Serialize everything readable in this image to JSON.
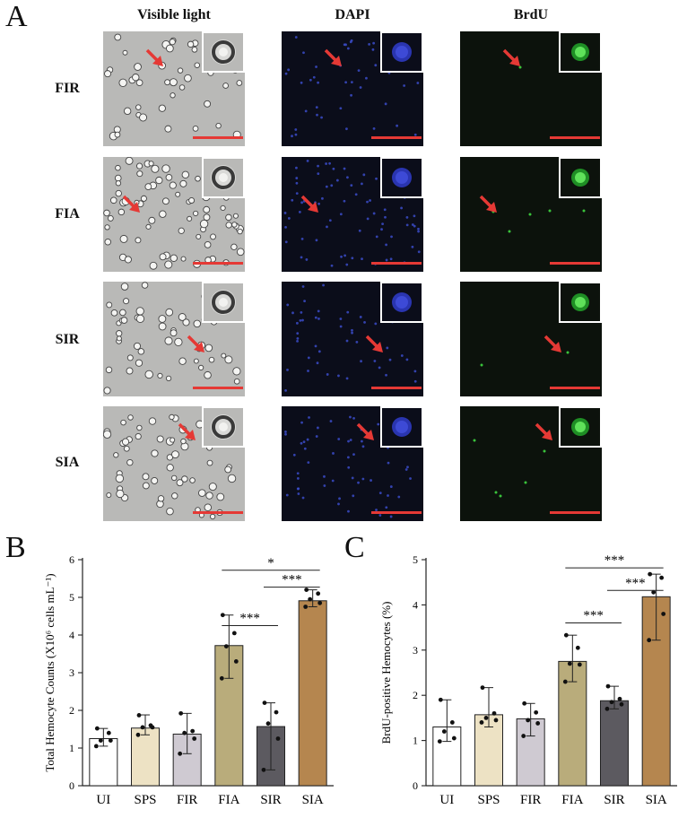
{
  "figure": {
    "panel_a_letter": "A",
    "panel_b_letter": "B",
    "panel_c_letter": "C",
    "column_headers": [
      "Visible light",
      "DAPI",
      "BrdU"
    ],
    "row_labels": [
      "FIR",
      "FIA",
      "SIR",
      "SIA"
    ],
    "colors": {
      "arrow": "#e53935",
      "scalebar": "#e53935",
      "dapi_bg": "#0b0d1a",
      "dapi_cell": "#3b4cc9",
      "brdu_bg": "#0c120c",
      "brdu_cell": "#39c33b",
      "vis_bg": "#b9b9b7"
    }
  },
  "chart_data": [
    {
      "type": "bar",
      "ylabel": "Total Hemocyte Counts (X10⁶ cells mL⁻¹)",
      "categories": [
        "UI",
        "SPS",
        "FIR",
        "FIA",
        "SIR",
        "SIA"
      ],
      "values": [
        1.25,
        1.53,
        1.37,
        3.72,
        1.57,
        4.91
      ],
      "error_low": [
        1.05,
        1.35,
        0.85,
        2.85,
        0.42,
        4.75
      ],
      "error_high": [
        1.52,
        1.88,
        1.92,
        4.53,
        2.2,
        5.2
      ],
      "points": [
        [
          1.52,
          1.4,
          1.2,
          1.2,
          1.05
        ],
        [
          1.87,
          1.6,
          1.55,
          1.55,
          1.35
        ],
        [
          1.92,
          1.45,
          1.4,
          1.25,
          0.85
        ],
        [
          4.53,
          4.05,
          3.7,
          3.3,
          2.85
        ],
        [
          2.2,
          1.95,
          1.65,
          1.25,
          0.42
        ],
        [
          5.2,
          5.1,
          4.95,
          4.85,
          4.75
        ]
      ],
      "bar_colors": [
        "#ffffff",
        "#ede2c4",
        "#cfcad2",
        "#b9ac7b",
        "#5c5a60",
        "#b5864f"
      ],
      "ylim": [
        0,
        6
      ],
      "yticks": [
        "0",
        "1",
        "2",
        "3",
        "4",
        "5",
        "6"
      ],
      "significance": [
        {
          "from": 3,
          "to": 4,
          "label": "***",
          "y": 4.25
        },
        {
          "from": 4,
          "to": 5,
          "label": "***",
          "y": 5.27
        },
        {
          "from": 3,
          "to": 5,
          "label": "*",
          "y": 5.72
        }
      ]
    },
    {
      "type": "bar",
      "ylabel": "BrdU-positive Hemocytes (%)",
      "categories": [
        "UI",
        "SPS",
        "FIR",
        "FIA",
        "SIR",
        "SIA"
      ],
      "values": [
        1.3,
        1.57,
        1.48,
        2.75,
        1.88,
        4.18
      ],
      "error_low": [
        0.98,
        1.3,
        1.1,
        2.3,
        1.7,
        3.22
      ],
      "error_high": [
        1.9,
        2.17,
        1.82,
        3.33,
        2.2,
        4.68
      ],
      "points": [
        [
          1.9,
          1.4,
          1.2,
          1.05,
          0.98
        ],
        [
          2.17,
          1.6,
          1.5,
          1.45,
          1.4
        ],
        [
          1.82,
          1.62,
          1.45,
          1.38,
          1.1
        ],
        [
          3.33,
          3.05,
          2.7,
          2.68,
          2.3
        ],
        [
          2.2,
          1.92,
          1.85,
          1.8,
          1.7
        ],
        [
          4.68,
          4.6,
          4.28,
          3.8,
          3.22
        ]
      ],
      "bar_colors": [
        "#ffffff",
        "#ede2c4",
        "#cfcad2",
        "#b9ac7b",
        "#5c5a60",
        "#b5864f"
      ],
      "ylim": [
        0,
        5
      ],
      "yticks": [
        "0",
        "1",
        "2",
        "3",
        "4",
        "5"
      ],
      "significance": [
        {
          "from": 3,
          "to": 4,
          "label": "***",
          "y": 3.6
        },
        {
          "from": 4,
          "to": 5,
          "label": "***",
          "y": 4.32
        },
        {
          "from": 3,
          "to": 5,
          "label": "***",
          "y": 4.82
        }
      ]
    }
  ]
}
